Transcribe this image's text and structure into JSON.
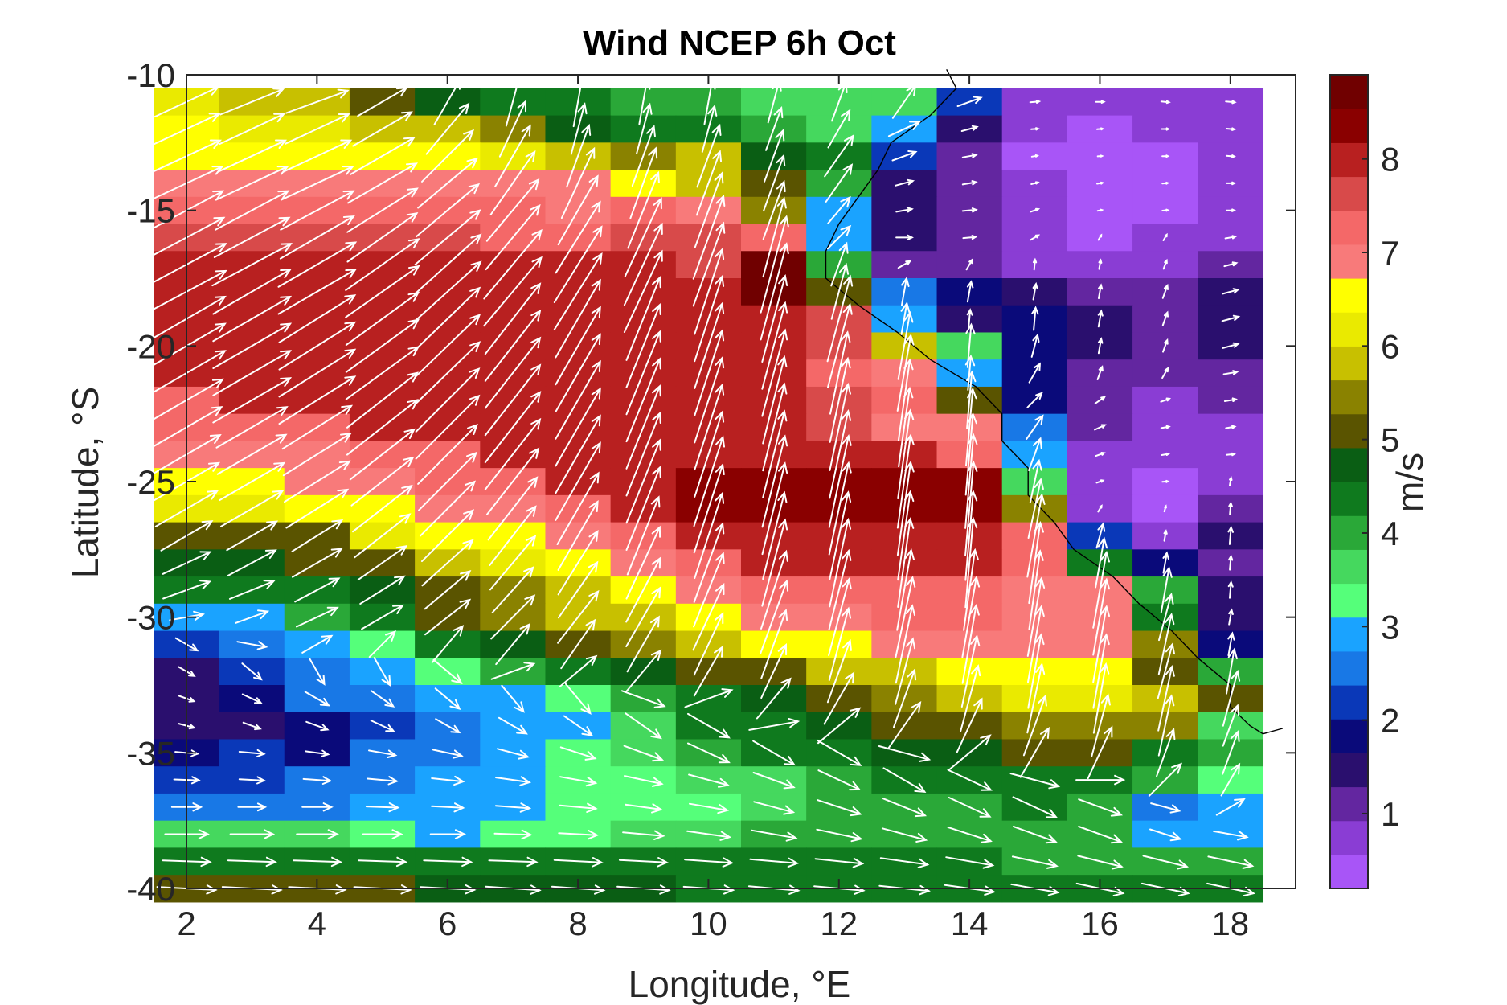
{
  "chart_data": {
    "type": "heatmap",
    "title": "Wind NCEP 6h Oct",
    "xlabel": "Longitude, °E",
    "ylabel": "Latitude, °S",
    "colorbar_label": "m/s",
    "xlim": [
      2,
      19
    ],
    "ylim": [
      -40,
      -10
    ],
    "xticks": [
      2,
      4,
      6,
      8,
      10,
      12,
      14,
      16,
      18
    ],
    "yticks": [
      -40,
      -35,
      -30,
      -25,
      -20,
      -15,
      -10
    ],
    "colorbar_ticks": [
      1,
      2,
      3,
      4,
      5,
      6,
      7,
      8
    ],
    "clim": [
      0.2,
      8.9
    ],
    "colormap": [
      "#a855f7",
      "#8a3dd4",
      "#6326a0",
      "#2a0f6e",
      "#0a0a7a",
      "#0a38b8",
      "#1878e6",
      "#1aa3ff",
      "#55ff7a",
      "#45d85e",
      "#2aa838",
      "#0f7a1e",
      "#0a5e14",
      "#5a5400",
      "#8a8200",
      "#c8c000",
      "#eaea00",
      "#ffff00",
      "#f87a7a",
      "#f46868",
      "#d84a4a",
      "#b82020",
      "#8a0000",
      "#700000"
    ],
    "grid": false,
    "lon": [
      2,
      3,
      4,
      5,
      6,
      7,
      8,
      9,
      10,
      11,
      12,
      13,
      14,
      15,
      16,
      17,
      18
    ],
    "lat": [
      -11,
      -12,
      -13,
      -14,
      -15,
      -16,
      -17,
      -18,
      -19,
      -20,
      -21,
      -22,
      -23,
      -24,
      -25,
      -26,
      -27,
      -28,
      -29,
      -30,
      -31,
      -32,
      -33,
      -34,
      -35,
      -36,
      -37,
      -38,
      -39,
      -40
    ],
    "speed": [
      [
        6.2,
        6.0,
        5.8,
        5.0,
        4.6,
        4.4,
        4.4,
        4.0,
        4.0,
        3.8,
        3.6,
        3.5,
        2.2,
        0.8,
        0.7,
        0.7,
        0.8
      ],
      [
        6.4,
        6.3,
        6.2,
        6.0,
        5.8,
        5.4,
        4.6,
        4.5,
        4.2,
        4.0,
        3.8,
        3.0,
        1.4,
        0.6,
        0.5,
        0.6,
        0.7
      ],
      [
        6.6,
        6.6,
        6.6,
        6.5,
        6.4,
        6.2,
        5.8,
        5.6,
        5.8,
        4.8,
        4.4,
        2.2,
        1.2,
        0.5,
        0.4,
        0.5,
        0.7
      ],
      [
        7.0,
        7.0,
        7.0,
        7.0,
        6.8,
        6.8,
        6.8,
        6.6,
        6.0,
        5.2,
        4.0,
        1.6,
        1.2,
        0.6,
        0.5,
        0.5,
        0.7
      ],
      [
        7.3,
        7.3,
        7.3,
        7.3,
        7.2,
        7.1,
        7.0,
        7.2,
        7.0,
        5.4,
        3.0,
        1.4,
        1.2,
        0.7,
        0.4,
        0.5,
        0.7
      ],
      [
        7.5,
        7.5,
        7.5,
        7.5,
        7.5,
        7.4,
        7.4,
        7.6,
        7.8,
        7.2,
        2.8,
        1.4,
        1.1,
        0.8,
        0.5,
        0.6,
        0.9
      ],
      [
        7.9,
        7.9,
        7.9,
        7.9,
        7.9,
        7.9,
        7.9,
        7.9,
        7.8,
        8.8,
        4.0,
        1.2,
        1.0,
        0.9,
        0.8,
        0.8,
        1.1
      ],
      [
        7.9,
        7.9,
        7.9,
        7.9,
        7.9,
        7.9,
        7.9,
        7.9,
        7.9,
        8.8,
        5.0,
        2.4,
        1.8,
        1.4,
        1.2,
        1.2,
        1.4
      ],
      [
        7.9,
        7.9,
        7.9,
        7.9,
        7.9,
        7.9,
        7.9,
        7.9,
        7.9,
        7.9,
        7.8,
        2.8,
        1.6,
        2.0,
        1.4,
        1.2,
        1.5
      ],
      [
        7.9,
        7.9,
        7.9,
        7.9,
        7.9,
        7.9,
        7.9,
        7.9,
        7.9,
        7.9,
        7.6,
        6.0,
        3.8,
        2.0,
        1.3,
        1.1,
        1.4
      ],
      [
        7.9,
        7.9,
        7.9,
        7.9,
        7.9,
        7.9,
        7.9,
        7.9,
        7.9,
        7.9,
        7.4,
        6.8,
        3.0,
        1.9,
        1.2,
        1.0,
        1.2
      ],
      [
        7.4,
        7.9,
        7.9,
        7.9,
        7.9,
        7.9,
        7.9,
        7.9,
        7.9,
        7.9,
        7.6,
        7.2,
        5.0,
        1.8,
        1.0,
        0.8,
        1.0
      ],
      [
        7.2,
        7.2,
        7.2,
        7.9,
        7.9,
        7.9,
        7.9,
        7.9,
        7.9,
        7.9,
        7.8,
        7.0,
        6.8,
        2.5,
        1.0,
        0.7,
        0.8
      ],
      [
        6.9,
        7.0,
        7.0,
        7.2,
        7.4,
        7.9,
        7.9,
        7.9,
        7.9,
        7.9,
        7.9,
        7.9,
        7.2,
        3.0,
        0.8,
        0.6,
        0.7
      ],
      [
        6.6,
        6.6,
        6.8,
        6.9,
        7.2,
        7.4,
        7.9,
        7.9,
        8.3,
        8.3,
        8.3,
        8.3,
        8.3,
        3.8,
        0.6,
        0.5,
        0.7
      ],
      [
        6.3,
        6.3,
        6.4,
        6.6,
        6.8,
        7.0,
        7.3,
        7.9,
        8.2,
        8.3,
        8.3,
        8.3,
        8.3,
        5.3,
        0.6,
        0.5,
        1.0
      ],
      [
        5.2,
        5.1,
        5.2,
        6.2,
        6.4,
        6.6,
        7.0,
        7.4,
        7.9,
        7.9,
        7.9,
        7.9,
        7.9,
        7.4,
        2.2,
        0.9,
        1.5
      ],
      [
        4.6,
        4.8,
        5.0,
        5.2,
        6.0,
        6.2,
        6.6,
        7.0,
        7.4,
        7.9,
        7.9,
        7.9,
        7.9,
        7.2,
        4.4,
        1.8,
        1.2
      ],
      [
        4.4,
        4.2,
        4.4,
        4.6,
        5.2,
        5.4,
        6.0,
        6.4,
        7.0,
        7.2,
        7.2,
        7.2,
        7.2,
        7.0,
        6.8,
        4.0,
        1.4
      ],
      [
        3.0,
        3.0,
        4.0,
        4.2,
        5.0,
        5.4,
        5.8,
        6.0,
        6.4,
        6.8,
        7.0,
        7.2,
        7.2,
        7.0,
        6.8,
        4.2,
        1.3
      ],
      [
        2.2,
        2.6,
        3.0,
        3.2,
        4.2,
        4.6,
        5.2,
        5.6,
        6.0,
        6.4,
        6.6,
        7.0,
        7.0,
        6.8,
        6.8,
        5.4,
        2.0
      ],
      [
        1.6,
        2.2,
        2.6,
        2.8,
        3.2,
        4.0,
        4.2,
        4.8,
        5.0,
        5.2,
        5.8,
        6.0,
        6.4,
        6.6,
        6.6,
        5.0,
        4.0
      ],
      [
        1.4,
        1.8,
        2.4,
        2.4,
        2.8,
        3.0,
        3.4,
        4.0,
        4.4,
        4.6,
        5.2,
        5.4,
        6.0,
        6.2,
        6.2,
        5.8,
        5.0
      ],
      [
        1.4,
        1.6,
        2.0,
        2.2,
        2.4,
        2.8,
        3.0,
        3.8,
        4.2,
        4.4,
        4.8,
        5.0,
        5.2,
        5.6,
        5.6,
        5.4,
        3.8
      ],
      [
        2.0,
        2.2,
        2.0,
        2.4,
        2.6,
        2.8,
        3.2,
        3.6,
        4.0,
        4.2,
        4.4,
        4.6,
        4.8,
        5.0,
        5.0,
        4.4,
        4.0
      ],
      [
        2.2,
        2.2,
        2.4,
        2.6,
        2.8,
        3.0,
        3.2,
        3.4,
        3.6,
        3.8,
        4.0,
        4.2,
        4.2,
        4.4,
        4.2,
        4.0,
        3.2
      ],
      [
        2.6,
        2.4,
        2.6,
        2.8,
        2.8,
        3.0,
        3.2,
        3.2,
        3.4,
        3.6,
        4.0,
        4.0,
        4.0,
        4.2,
        4.0,
        2.6,
        2.8
      ],
      [
        3.8,
        3.8,
        3.6,
        3.4,
        3.0,
        3.2,
        3.4,
        3.6,
        3.8,
        4.0,
        4.0,
        4.0,
        4.0,
        4.0,
        4.0,
        2.8,
        3.0
      ],
      [
        4.2,
        4.2,
        4.2,
        4.2,
        4.2,
        4.2,
        4.2,
        4.2,
        4.2,
        4.2,
        4.2,
        4.2,
        4.2,
        4.0,
        4.0,
        4.0,
        4.0
      ],
      [
        5.2,
        5.2,
        5.0,
        5.0,
        4.8,
        4.8,
        4.6,
        4.6,
        4.4,
        4.4,
        4.4,
        4.4,
        4.4,
        4.2,
        4.2,
        4.2,
        4.2
      ]
    ],
    "wind_direction_deg": [
      [
        -25,
        -22,
        -20,
        -30,
        -60,
        -75,
        -80,
        -80,
        -80,
        -75,
        -70,
        -55,
        -20,
        -5,
        0,
        5,
        5
      ],
      [
        -25,
        -25,
        -25,
        -30,
        -50,
        -65,
        -75,
        -75,
        -75,
        -70,
        -60,
        -25,
        -15,
        -5,
        -5,
        0,
        5
      ],
      [
        -25,
        -25,
        -25,
        -30,
        -45,
        -60,
        -70,
        -70,
        -70,
        -70,
        -55,
        -20,
        -10,
        -10,
        -5,
        0,
        5
      ],
      [
        -25,
        -25,
        -25,
        -30,
        -40,
        -55,
        -65,
        -70,
        -70,
        -70,
        -55,
        -15,
        -10,
        -15,
        -10,
        -5,
        0
      ],
      [
        -28,
        -28,
        -28,
        -32,
        -40,
        -50,
        -60,
        -68,
        -70,
        -70,
        -50,
        -10,
        -5,
        -20,
        -10,
        -5,
        0
      ],
      [
        -28,
        -28,
        -30,
        -35,
        -40,
        -50,
        -58,
        -65,
        -70,
        -75,
        -45,
        0,
        -5,
        -30,
        -60,
        -60,
        -10
      ],
      [
        -28,
        -28,
        -30,
        -35,
        -42,
        -50,
        -58,
        -65,
        -70,
        -75,
        -70,
        -30,
        -60,
        -85,
        -80,
        -70,
        -15
      ],
      [
        -28,
        -30,
        -30,
        -35,
        -42,
        -50,
        -58,
        -65,
        -72,
        -75,
        -75,
        -80,
        -80,
        -80,
        -80,
        -70,
        -15
      ],
      [
        -30,
        -30,
        -32,
        -36,
        -44,
        -52,
        -60,
        -68,
        -72,
        -75,
        -75,
        -80,
        -85,
        -85,
        -80,
        -70,
        -15
      ],
      [
        -30,
        -30,
        -32,
        -36,
        -44,
        -52,
        -60,
        -68,
        -72,
        -75,
        -75,
        -80,
        -85,
        -75,
        -80,
        -70,
        -15
      ],
      [
        -30,
        -30,
        -32,
        -36,
        -44,
        -52,
        -60,
        -68,
        -72,
        -75,
        -78,
        -80,
        -85,
        -60,
        -70,
        -60,
        -10
      ],
      [
        -30,
        -30,
        -32,
        -38,
        -45,
        -52,
        -60,
        -68,
        -72,
        -76,
        -78,
        -82,
        -85,
        -45,
        -35,
        -20,
        -10
      ],
      [
        -30,
        -30,
        -32,
        -38,
        -45,
        -52,
        -60,
        -68,
        -72,
        -76,
        -78,
        -82,
        -85,
        -55,
        -25,
        -10,
        -10
      ],
      [
        -30,
        -30,
        -32,
        -38,
        -45,
        -52,
        -60,
        -68,
        -72,
        -76,
        -78,
        -82,
        -85,
        -70,
        -20,
        -10,
        -5
      ],
      [
        -30,
        -30,
        -32,
        -38,
        -45,
        -52,
        -60,
        -68,
        -72,
        -76,
        -78,
        -82,
        -85,
        -78,
        -20,
        -5,
        -80
      ],
      [
        -30,
        -30,
        -32,
        -38,
        -45,
        -52,
        -60,
        -68,
        -72,
        -76,
        -78,
        -82,
        -85,
        -78,
        -60,
        -75,
        -85
      ],
      [
        -30,
        -30,
        -32,
        -38,
        -45,
        -52,
        -60,
        -68,
        -72,
        -76,
        -78,
        -82,
        -85,
        -80,
        -75,
        -80,
        -85
      ],
      [
        -25,
        -28,
        -30,
        -35,
        -42,
        -50,
        -58,
        -65,
        -70,
        -75,
        -78,
        -82,
        -85,
        -82,
        -80,
        -80,
        -85
      ],
      [
        -20,
        -22,
        -28,
        -32,
        -40,
        -48,
        -55,
        -62,
        -68,
        -72,
        -76,
        -80,
        -82,
        -82,
        -80,
        -80,
        -85
      ],
      [
        -10,
        -20,
        -25,
        -30,
        -38,
        -45,
        -52,
        -60,
        -65,
        -70,
        -75,
        -78,
        -80,
        -80,
        -80,
        -75,
        -80
      ],
      [
        30,
        10,
        -30,
        -45,
        -50,
        -50,
        -55,
        -60,
        -65,
        -70,
        -75,
        -78,
        -80,
        -80,
        -80,
        -78,
        -80
      ],
      [
        30,
        40,
        60,
        60,
        40,
        -20,
        -40,
        -50,
        -60,
        -65,
        -70,
        -75,
        -78,
        -80,
        -80,
        -75,
        -80
      ],
      [
        20,
        25,
        30,
        35,
        40,
        50,
        50,
        20,
        -20,
        -50,
        -60,
        -70,
        -75,
        -78,
        -80,
        -78,
        -75
      ],
      [
        15,
        20,
        20,
        25,
        30,
        30,
        35,
        35,
        30,
        -10,
        -40,
        -55,
        -65,
        -70,
        -75,
        -78,
        -70
      ],
      [
        5,
        5,
        8,
        10,
        12,
        15,
        18,
        20,
        25,
        30,
        30,
        15,
        -40,
        -60,
        -65,
        -70,
        -70
      ],
      [
        2,
        3,
        4,
        5,
        6,
        8,
        10,
        12,
        15,
        20,
        25,
        30,
        25,
        15,
        0,
        -45,
        -60
      ],
      [
        0,
        0,
        0,
        2,
        3,
        4,
        5,
        8,
        10,
        15,
        18,
        22,
        25,
        25,
        20,
        15,
        -30
      ],
      [
        0,
        0,
        0,
        0,
        0,
        2,
        3,
        5,
        8,
        10,
        12,
        15,
        18,
        20,
        20,
        18,
        10
      ],
      [
        2,
        2,
        2,
        2,
        2,
        2,
        3,
        3,
        4,
        5,
        6,
        8,
        10,
        12,
        14,
        14,
        12
      ],
      [
        3,
        3,
        3,
        3,
        3,
        4,
        4,
        4,
        4,
        5,
        5,
        6,
        8,
        10,
        12,
        12,
        12
      ]
    ]
  }
}
